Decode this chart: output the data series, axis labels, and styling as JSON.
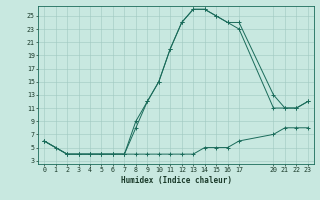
{
  "xlabel": "Humidex (Indice chaleur)",
  "background_color": "#c8e8e0",
  "grid_color": "#a0c8c0",
  "line_color": "#1a6b5a",
  "spine_color": "#1a6b5a",
  "xlim": [
    -0.5,
    23.5
  ],
  "ylim": [
    2.5,
    26.5
  ],
  "xticks": [
    0,
    1,
    2,
    3,
    4,
    5,
    6,
    7,
    8,
    9,
    10,
    11,
    12,
    13,
    14,
    15,
    16,
    17,
    20,
    21,
    22,
    23
  ],
  "yticks": [
    3,
    5,
    7,
    9,
    11,
    13,
    15,
    17,
    19,
    21,
    23,
    25
  ],
  "line1_x": [
    0,
    1,
    2,
    3,
    4,
    5,
    6,
    7,
    8,
    9,
    10,
    11,
    12,
    13,
    14,
    15,
    16,
    17,
    20,
    21,
    22,
    23
  ],
  "line1_y": [
    6,
    5,
    4,
    4,
    4,
    4,
    4,
    4,
    4,
    4,
    4,
    4,
    4,
    4,
    5,
    5,
    5,
    6,
    7,
    8,
    8,
    8
  ],
  "line2_x": [
    0,
    2,
    3,
    4,
    5,
    6,
    7,
    8,
    9,
    10,
    11,
    12,
    13,
    14,
    15,
    16,
    17,
    20,
    21,
    22,
    23
  ],
  "line2_y": [
    6,
    4,
    4,
    4,
    4,
    4,
    4,
    9,
    12,
    15,
    20,
    24,
    26,
    26,
    25,
    24,
    23,
    11,
    11,
    11,
    12
  ],
  "line3_x": [
    0,
    2,
    3,
    4,
    5,
    6,
    7,
    8,
    9,
    10,
    11,
    12,
    13,
    14,
    15,
    16,
    17,
    20,
    21,
    22,
    23
  ],
  "line3_y": [
    6,
    4,
    4,
    4,
    4,
    4,
    4,
    8,
    12,
    15,
    20,
    24,
    26,
    26,
    25,
    24,
    24,
    13,
    11,
    11,
    12
  ]
}
